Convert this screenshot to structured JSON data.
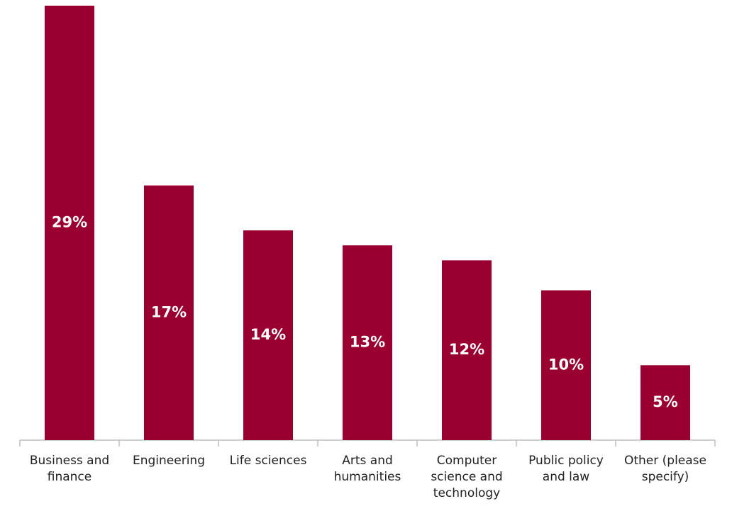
{
  "chart_data": {
    "type": "bar",
    "categories": [
      "Business and finance",
      "Engineering",
      "Life sciences",
      "Arts and humanities",
      "Computer science and technology",
      "Public policy and law",
      "Other (please specify)"
    ],
    "values": [
      29,
      17,
      14,
      13,
      12,
      10,
      5
    ],
    "value_labels": [
      "29%",
      "17%",
      "14%",
      "13%",
      "12%",
      "10%",
      "5%"
    ],
    "color": "#990031"
  }
}
